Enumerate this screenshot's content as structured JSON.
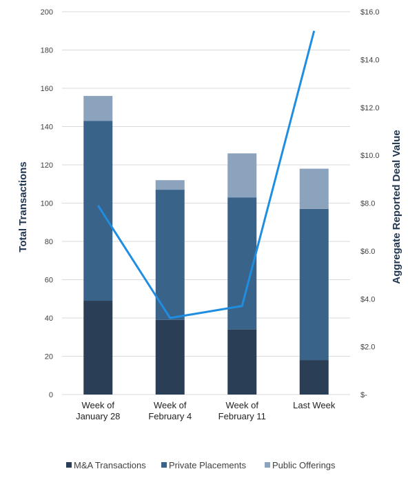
{
  "chart_data": {
    "type": "bar",
    "stacked": true,
    "categories": [
      [
        "Week of",
        "January 28"
      ],
      [
        "Week of",
        "February 4"
      ],
      [
        "Week of",
        "February 11"
      ],
      [
        "Last Week"
      ]
    ],
    "series": [
      {
        "name": "M&A Transactions",
        "values": [
          49,
          39,
          34,
          18
        ],
        "color": "#2a3f56"
      },
      {
        "name": "Private Placements",
        "values": [
          94,
          68,
          69,
          79
        ],
        "color": "#3a6389"
      },
      {
        "name": "Public Offerings",
        "values": [
          13,
          5,
          23,
          21
        ],
        "color": "#8ba3bd"
      }
    ],
    "line_series": {
      "values": [
        7.9,
        3.2,
        3.7,
        15.2
      ],
      "color": "#1f8de0",
      "axis": "right"
    },
    "ylabel": "Total Transactions",
    "y2label": "Aggregate Reported Deal Value",
    "ylim": [
      0,
      200
    ],
    "y2lim": [
      0,
      16
    ],
    "yticks": [
      "0",
      "20",
      "40",
      "60",
      "80",
      "100",
      "120",
      "140",
      "160",
      "180",
      "200"
    ],
    "y2ticks": [
      "$-",
      "$2.0",
      "$4.0",
      "$6.0",
      "$8.0",
      "$10.0",
      "$12.0",
      "$14.0",
      "$16.0"
    ],
    "grid": true,
    "legend": "bottom"
  }
}
